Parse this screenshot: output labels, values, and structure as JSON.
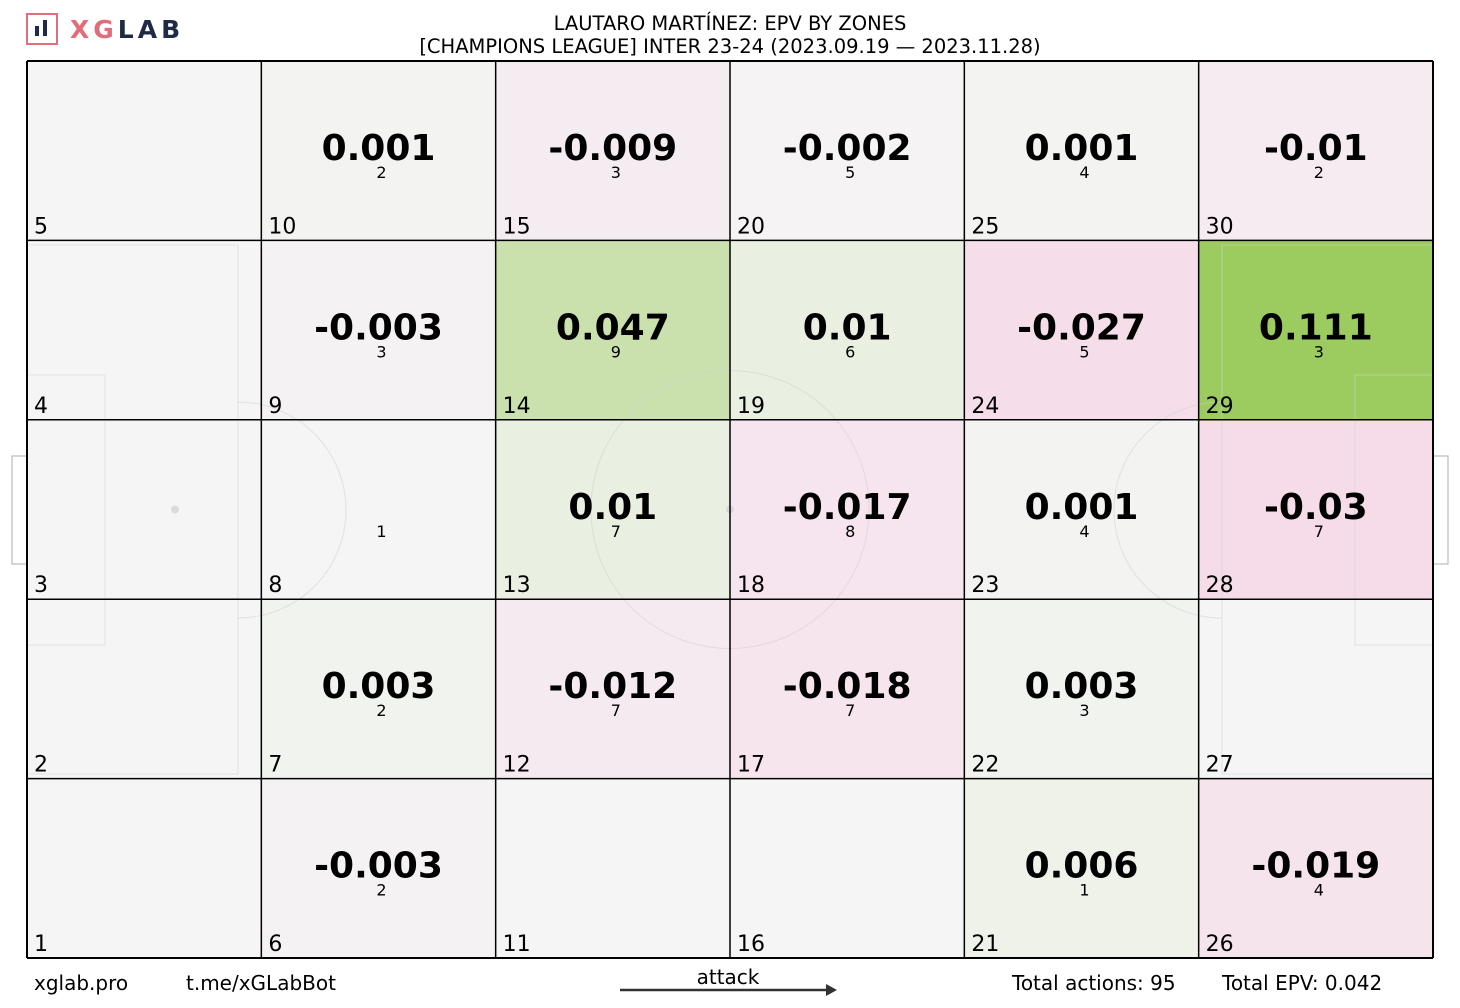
{
  "logo": {
    "xg": "XG",
    "lab": "LAB"
  },
  "title": {
    "line1": "LAUTARO MARTÍNEZ: EPV BY ZONES",
    "line2": "[CHAMPIONS LEAGUE] INTER 23-24 (2023.09.19 — 2023.11.28)"
  },
  "footer": {
    "site": "xglab.pro",
    "bot": "t.me/xGLabBot",
    "attack": "attack",
    "total_actions": "Total actions: 95",
    "total_epv": "Total EPV: 0.042"
  },
  "colors": {
    "neutral": "#f5f5f5",
    "positive_max": "#9ccc5f",
    "negative_max": "#f6dbe9",
    "grid": "#000000"
  },
  "chart_data": {
    "type": "heatmap",
    "grid": {
      "columns": 6,
      "rows": 5
    },
    "zones": [
      {
        "zone": 1,
        "epv": null,
        "count": null
      },
      {
        "zone": 2,
        "epv": null,
        "count": null
      },
      {
        "zone": 3,
        "epv": null,
        "count": null
      },
      {
        "zone": 4,
        "epv": null,
        "count": null
      },
      {
        "zone": 5,
        "epv": null,
        "count": null
      },
      {
        "zone": 6,
        "epv": -0.003,
        "count": 2
      },
      {
        "zone": 7,
        "epv": 0.003,
        "count": 2
      },
      {
        "zone": 8,
        "epv": null,
        "count": 1
      },
      {
        "zone": 9,
        "epv": -0.003,
        "count": 3
      },
      {
        "zone": 10,
        "epv": 0.001,
        "count": 2
      },
      {
        "zone": 11,
        "epv": null,
        "count": null
      },
      {
        "zone": 12,
        "epv": -0.012,
        "count": 7
      },
      {
        "zone": 13,
        "epv": 0.01,
        "count": 7
      },
      {
        "zone": 14,
        "epv": 0.047,
        "count": 9
      },
      {
        "zone": 15,
        "epv": -0.009,
        "count": 3
      },
      {
        "zone": 16,
        "epv": null,
        "count": null
      },
      {
        "zone": 17,
        "epv": -0.018,
        "count": 7
      },
      {
        "zone": 18,
        "epv": -0.017,
        "count": 8
      },
      {
        "zone": 19,
        "epv": 0.01,
        "count": 6
      },
      {
        "zone": 20,
        "epv": -0.002,
        "count": 5
      },
      {
        "zone": 21,
        "epv": 0.006,
        "count": 1
      },
      {
        "zone": 22,
        "epv": 0.003,
        "count": 3
      },
      {
        "zone": 23,
        "epv": 0.001,
        "count": 4
      },
      {
        "zone": 24,
        "epv": -0.027,
        "count": 5
      },
      {
        "zone": 25,
        "epv": 0.001,
        "count": 4
      },
      {
        "zone": 26,
        "epv": -0.019,
        "count": 4
      },
      {
        "zone": 27,
        "epv": null,
        "count": null
      },
      {
        "zone": 28,
        "epv": -0.03,
        "count": 7
      },
      {
        "zone": 29,
        "epv": 0.111,
        "count": 3
      },
      {
        "zone": 30,
        "epv": -0.01,
        "count": 2
      }
    ]
  }
}
